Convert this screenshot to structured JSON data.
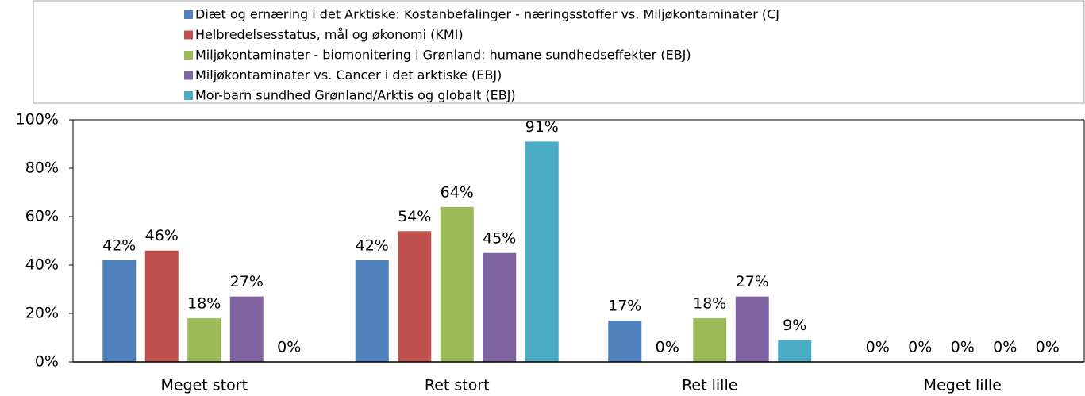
{
  "chart_data": {
    "type": "bar",
    "categories": [
      "Meget stort",
      "Ret stort",
      "Ret lille",
      "Meget lille"
    ],
    "series": [
      {
        "name": "Diæt og ernæring i det Arktiske: Kostanbefalinger - næringsstoffer vs. Miljøkontaminater (CJ",
        "color": "#4f81bd",
        "values": [
          42,
          42,
          17,
          0
        ],
        "value_labels": [
          "42%",
          "42%",
          "17%",
          "0%"
        ]
      },
      {
        "name": "Helbredelsesstatus, mål og økonomi (KMI)",
        "color": "#c0504d",
        "values": [
          46,
          54,
          0,
          0
        ],
        "value_labels": [
          "46%",
          "54%",
          "0%",
          "0%"
        ]
      },
      {
        "name": "Miljøkontaminater - biomonitering i Grønland: humane sundhedseffekter (EBJ)",
        "color": "#9bbb59",
        "values": [
          18,
          64,
          18,
          0
        ],
        "value_labels": [
          "18%",
          "64%",
          "18%",
          "0%"
        ]
      },
      {
        "name": "Miljøkontaminater vs. Cancer i det arktiske (EBJ)",
        "color": "#8064a2",
        "values": [
          27,
          45,
          27,
          0
        ],
        "value_labels": [
          "27%",
          "45%",
          "27%",
          "0%"
        ]
      },
      {
        "name": "Mor-barn sundhed Grønland/Arktis og globalt (EBJ)",
        "color": "#4bacc6",
        "values": [
          0,
          91,
          9,
          0
        ],
        "value_labels": [
          "0%",
          "91%",
          "9%",
          "0%"
        ]
      }
    ],
    "ylim": [
      0,
      100
    ],
    "yticks": [
      {
        "value": 0,
        "label": "0%"
      },
      {
        "value": 20,
        "label": "20%"
      },
      {
        "value": 40,
        "label": "40%"
      },
      {
        "value": 60,
        "label": "60%"
      },
      {
        "value": 80,
        "label": "80%"
      },
      {
        "value": 100,
        "label": "100%"
      }
    ],
    "legend": "top"
  }
}
